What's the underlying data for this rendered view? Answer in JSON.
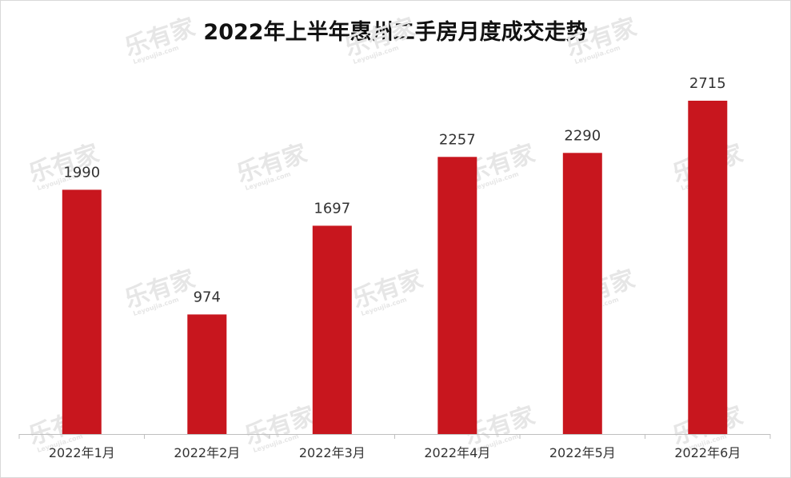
{
  "chart_data": {
    "type": "bar",
    "title": "2022年上半年惠州二手房月度成交走势",
    "categories": [
      "2022年1月",
      "2022年2月",
      "2022年3月",
      "2022年4月",
      "2022年5月",
      "2022年6月"
    ],
    "values": [
      1990,
      974,
      1697,
      2257,
      2290,
      2715
    ],
    "data_labels": [
      "1990",
      "974",
      "1697",
      "2257",
      "2290",
      "2715"
    ],
    "xlabel": "",
    "ylabel": "",
    "ylim": [
      0,
      3000
    ],
    "grid": false,
    "legend": "none",
    "bar_color": "#c8161e"
  },
  "watermark": {
    "text": "乐有家",
    "subtext": "Leyoujia.com",
    "color": "#e6e6e6"
  }
}
